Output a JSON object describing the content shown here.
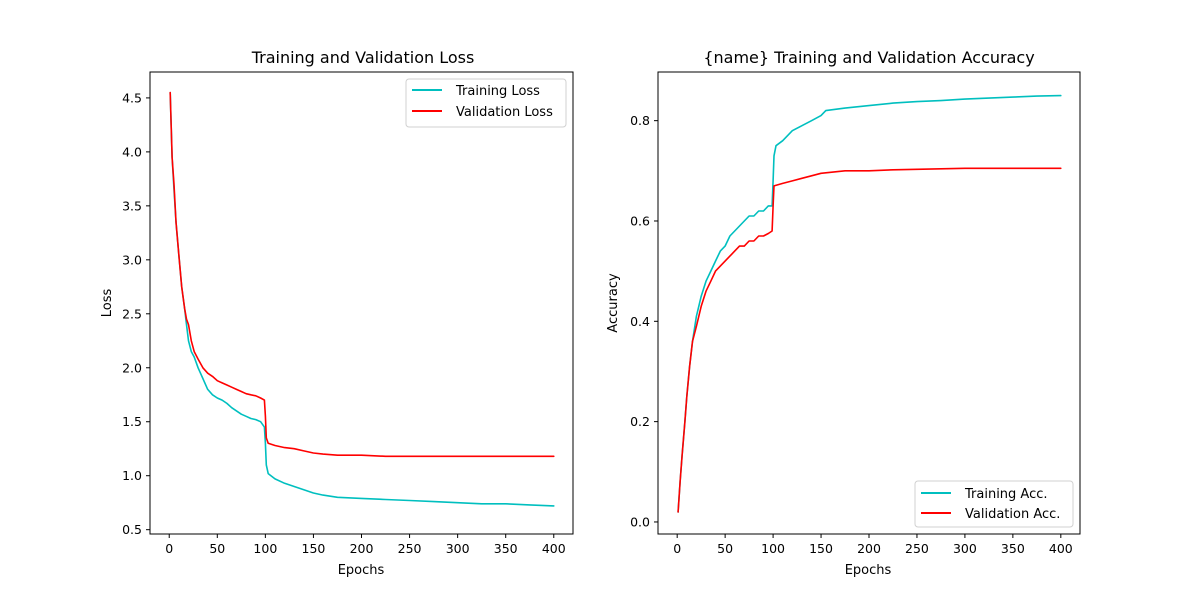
{
  "chart_data": [
    {
      "type": "line",
      "title": "Training and Validation Loss",
      "xlabel": "Epochs",
      "ylabel": "Loss",
      "xlim": [
        -20,
        420
      ],
      "ylim": [
        0.46,
        4.74
      ],
      "xticks": [
        0,
        50,
        100,
        150,
        200,
        250,
        300,
        350,
        400
      ],
      "xtick_labels": [
        "0",
        "50",
        "100",
        "150",
        "200",
        "250",
        "300",
        "350",
        "400"
      ],
      "yticks": [
        0.5,
        1.0,
        1.5,
        2.0,
        2.5,
        3.0,
        3.5,
        4.0,
        4.5
      ],
      "ytick_labels": [
        "0.5",
        "1.0",
        "1.5",
        "2.0",
        "2.5",
        "3.0",
        "3.5",
        "4.0",
        "4.5"
      ],
      "grid": false,
      "legend_position": "top-right",
      "series": [
        {
          "name": "Training Loss",
          "color": "#00bfbf",
          "points": [
            [
              1,
              4.55
            ],
            [
              3,
              3.95
            ],
            [
              5,
              3.65
            ],
            [
              7,
              3.35
            ],
            [
              10,
              3.05
            ],
            [
              13,
              2.75
            ],
            [
              16,
              2.55
            ],
            [
              18,
              2.4
            ],
            [
              20,
              2.25
            ],
            [
              23,
              2.15
            ],
            [
              26,
              2.1
            ],
            [
              30,
              2.0
            ],
            [
              35,
              1.9
            ],
            [
              40,
              1.8
            ],
            [
              45,
              1.75
            ],
            [
              50,
              1.72
            ],
            [
              55,
              1.7
            ],
            [
              60,
              1.67
            ],
            [
              65,
              1.63
            ],
            [
              70,
              1.6
            ],
            [
              75,
              1.57
            ],
            [
              80,
              1.55
            ],
            [
              85,
              1.53
            ],
            [
              90,
              1.52
            ],
            [
              95,
              1.5
            ],
            [
              99,
              1.45
            ],
            [
              100,
              1.3
            ],
            [
              101,
              1.1
            ],
            [
              103,
              1.02
            ],
            [
              110,
              0.97
            ],
            [
              120,
              0.93
            ],
            [
              130,
              0.9
            ],
            [
              140,
              0.87
            ],
            [
              150,
              0.84
            ],
            [
              160,
              0.82
            ],
            [
              175,
              0.8
            ],
            [
              200,
              0.79
            ],
            [
              225,
              0.78
            ],
            [
              250,
              0.77
            ],
            [
              275,
              0.76
            ],
            [
              300,
              0.75
            ],
            [
              325,
              0.74
            ],
            [
              350,
              0.74
            ],
            [
              375,
              0.73
            ],
            [
              400,
              0.72
            ]
          ]
        },
        {
          "name": "Validation Loss",
          "color": "#ff0000",
          "points": [
            [
              1,
              4.55
            ],
            [
              3,
              3.95
            ],
            [
              5,
              3.7
            ],
            [
              7,
              3.35
            ],
            [
              10,
              3.05
            ],
            [
              13,
              2.75
            ],
            [
              16,
              2.55
            ],
            [
              18,
              2.45
            ],
            [
              20,
              2.4
            ],
            [
              23,
              2.25
            ],
            [
              26,
              2.15
            ],
            [
              30,
              2.08
            ],
            [
              35,
              2.0
            ],
            [
              40,
              1.95
            ],
            [
              45,
              1.92
            ],
            [
              50,
              1.88
            ],
            [
              55,
              1.86
            ],
            [
              60,
              1.84
            ],
            [
              65,
              1.82
            ],
            [
              70,
              1.8
            ],
            [
              75,
              1.78
            ],
            [
              80,
              1.76
            ],
            [
              85,
              1.75
            ],
            [
              90,
              1.74
            ],
            [
              95,
              1.72
            ],
            [
              99,
              1.7
            ],
            [
              100,
              1.55
            ],
            [
              101,
              1.35
            ],
            [
              103,
              1.3
            ],
            [
              110,
              1.28
            ],
            [
              120,
              1.26
            ],
            [
              130,
              1.25
            ],
            [
              140,
              1.23
            ],
            [
              150,
              1.21
            ],
            [
              160,
              1.2
            ],
            [
              175,
              1.19
            ],
            [
              200,
              1.19
            ],
            [
              225,
              1.18
            ],
            [
              250,
              1.18
            ],
            [
              275,
              1.18
            ],
            [
              300,
              1.18
            ],
            [
              325,
              1.18
            ],
            [
              350,
              1.18
            ],
            [
              375,
              1.18
            ],
            [
              400,
              1.18
            ]
          ]
        }
      ]
    },
    {
      "type": "line",
      "title": "{name} Training and Validation Accuracy",
      "xlabel": "Epochs",
      "ylabel": "Accuracy",
      "xlim": [
        -20,
        420
      ],
      "ylim": [
        -0.024,
        0.897
      ],
      "xticks": [
        0,
        50,
        100,
        150,
        200,
        250,
        300,
        350,
        400
      ],
      "xtick_labels": [
        "0",
        "50",
        "100",
        "150",
        "200",
        "250",
        "300",
        "350",
        "400"
      ],
      "yticks": [
        0.0,
        0.2,
        0.4,
        0.6,
        0.8
      ],
      "ytick_labels": [
        "0.0",
        "0.2",
        "0.4",
        "0.6",
        "0.8"
      ],
      "grid": false,
      "legend_position": "bottom-right",
      "series": [
        {
          "name": "Training Acc.",
          "color": "#00bfbf",
          "points": [
            [
              1,
              0.02
            ],
            [
              3,
              0.08
            ],
            [
              5,
              0.13
            ],
            [
              8,
              0.2
            ],
            [
              10,
              0.25
            ],
            [
              13,
              0.31
            ],
            [
              16,
              0.36
            ],
            [
              20,
              0.41
            ],
            [
              25,
              0.45
            ],
            [
              30,
              0.48
            ],
            [
              35,
              0.5
            ],
            [
              40,
              0.52
            ],
            [
              45,
              0.54
            ],
            [
              50,
              0.55
            ],
            [
              55,
              0.57
            ],
            [
              60,
              0.58
            ],
            [
              65,
              0.59
            ],
            [
              70,
              0.6
            ],
            [
              75,
              0.61
            ],
            [
              80,
              0.61
            ],
            [
              85,
              0.62
            ],
            [
              90,
              0.62
            ],
            [
              95,
              0.63
            ],
            [
              99,
              0.63
            ],
            [
              100,
              0.68
            ],
            [
              101,
              0.73
            ],
            [
              103,
              0.75
            ],
            [
              110,
              0.76
            ],
            [
              120,
              0.78
            ],
            [
              130,
              0.79
            ],
            [
              140,
              0.8
            ],
            [
              150,
              0.81
            ],
            [
              155,
              0.82
            ],
            [
              175,
              0.825
            ],
            [
              200,
              0.83
            ],
            [
              225,
              0.835
            ],
            [
              250,
              0.838
            ],
            [
              275,
              0.84
            ],
            [
              300,
              0.843
            ],
            [
              325,
              0.845
            ],
            [
              350,
              0.847
            ],
            [
              375,
              0.849
            ],
            [
              400,
              0.85
            ]
          ]
        },
        {
          "name": "Validation Acc.",
          "color": "#ff0000",
          "points": [
            [
              1,
              0.02
            ],
            [
              3,
              0.08
            ],
            [
              5,
              0.13
            ],
            [
              8,
              0.2
            ],
            [
              10,
              0.25
            ],
            [
              13,
              0.31
            ],
            [
              16,
              0.36
            ],
            [
              20,
              0.39
            ],
            [
              25,
              0.43
            ],
            [
              30,
              0.46
            ],
            [
              35,
              0.48
            ],
            [
              40,
              0.5
            ],
            [
              45,
              0.51
            ],
            [
              50,
              0.52
            ],
            [
              55,
              0.53
            ],
            [
              60,
              0.54
            ],
            [
              65,
              0.55
            ],
            [
              70,
              0.55
            ],
            [
              75,
              0.56
            ],
            [
              80,
              0.56
            ],
            [
              85,
              0.57
            ],
            [
              90,
              0.57
            ],
            [
              95,
              0.575
            ],
            [
              99,
              0.58
            ],
            [
              100,
              0.63
            ],
            [
              101,
              0.67
            ],
            [
              110,
              0.675
            ],
            [
              120,
              0.68
            ],
            [
              130,
              0.685
            ],
            [
              140,
              0.69
            ],
            [
              150,
              0.695
            ],
            [
              175,
              0.7
            ],
            [
              200,
              0.7
            ],
            [
              225,
              0.702
            ],
            [
              250,
              0.703
            ],
            [
              275,
              0.704
            ],
            [
              300,
              0.705
            ],
            [
              325,
              0.705
            ],
            [
              350,
              0.705
            ],
            [
              375,
              0.705
            ],
            [
              400,
              0.705
            ]
          ]
        }
      ]
    }
  ]
}
